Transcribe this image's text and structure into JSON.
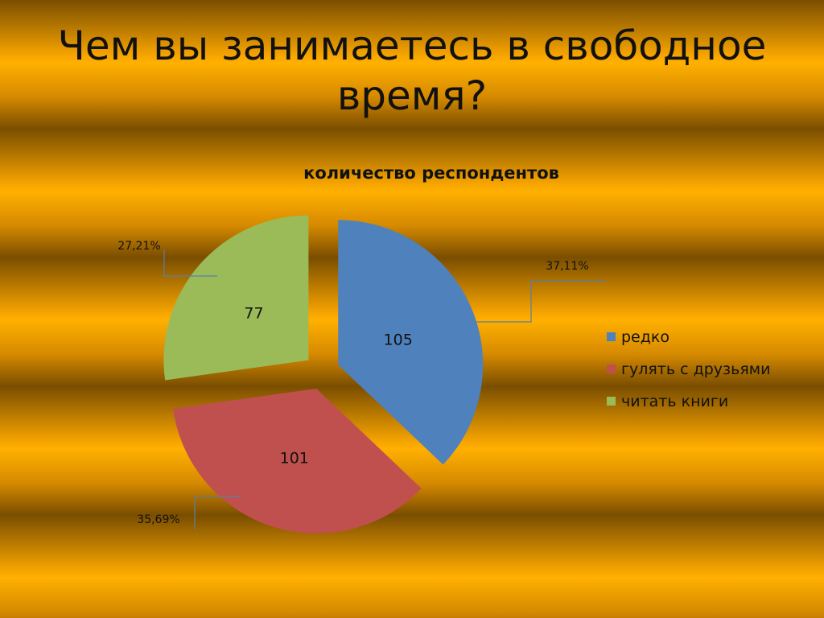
{
  "slide": {
    "title_line1": "Чем вы занимаетесь в свободное",
    "title_line2": "время?"
  },
  "chart_data": {
    "type": "pie",
    "title": "количество респондентов",
    "legend_position": "right",
    "slices": [
      {
        "label": "редко",
        "value": 105,
        "percent_label": "37,11%",
        "color": "#4f81bd"
      },
      {
        "label": "гулять с друзьями",
        "value": 101,
        "percent_label": "35,69%",
        "color": "#c0504d"
      },
      {
        "label": "читать книги",
        "value": 77,
        "percent_label": "27,21%",
        "color": "#9bbb59"
      }
    ]
  }
}
